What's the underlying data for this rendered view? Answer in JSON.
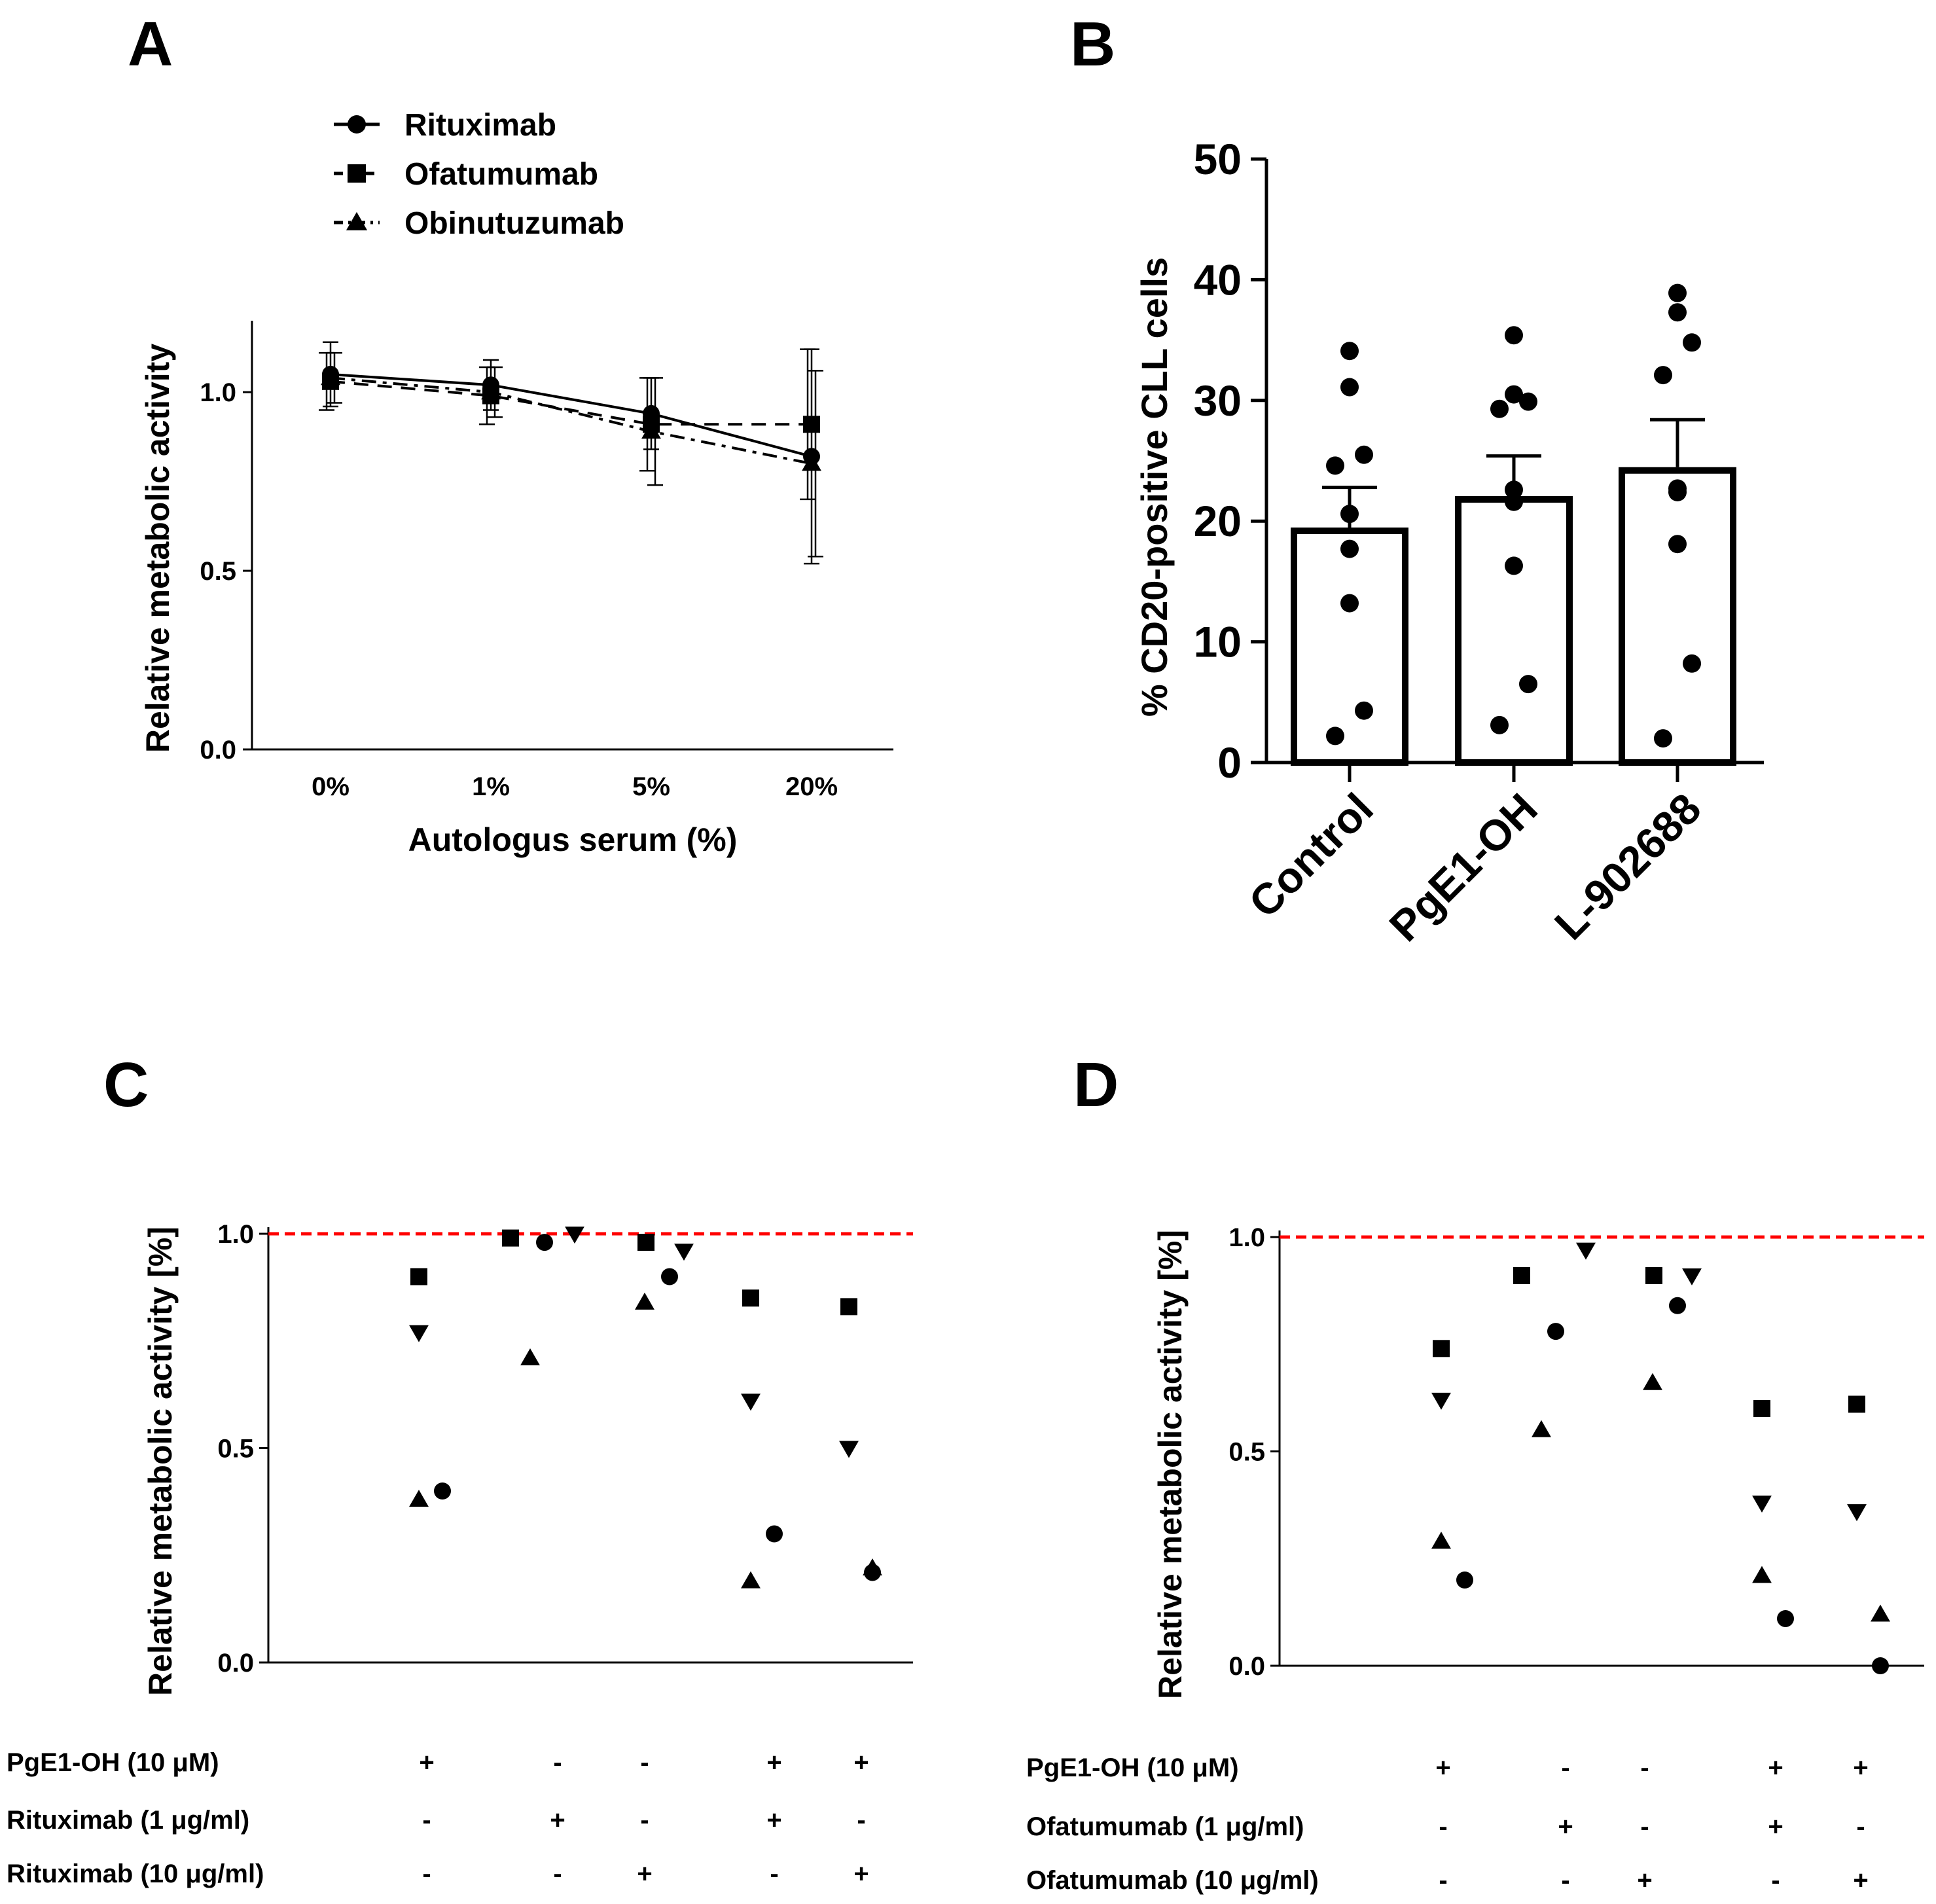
{
  "colors": {
    "ink": "#000000",
    "reference_line": "#ff0000",
    "background": "#ffffff"
  },
  "chart_data": [
    {
      "panel": "A",
      "type": "line",
      "title": "",
      "xlabel": "Autologus serum (%)",
      "ylabel": "Relative metabolic activity",
      "categories": [
        "0%",
        "1%",
        "5%",
        "20%"
      ],
      "ylim": [
        0,
        1.2
      ],
      "yticks": [
        0.0,
        0.5,
        1.0
      ],
      "ytick_labels": [
        "0.0",
        "0.5",
        "1.0"
      ],
      "legend_position": "top-left",
      "series": [
        {
          "name": "Rituximab",
          "marker": "circle",
          "line_style": "solid",
          "values": [
            1.05,
            1.02,
            0.94,
            0.82
          ],
          "errors": [
            0.09,
            0.07,
            0.1,
            0.3
          ]
        },
        {
          "name": "Ofatumumab",
          "marker": "square",
          "line_style": "dashed",
          "values": [
            1.03,
            0.99,
            0.91,
            0.91
          ],
          "errors": [
            0.08,
            0.08,
            0.13,
            0.21
          ]
        },
        {
          "name": "Obinutuzumab",
          "marker": "triangle-up",
          "line_style": "dash-dot",
          "values": [
            1.04,
            1.0,
            0.89,
            0.8
          ],
          "errors": [
            0.07,
            0.07,
            0.15,
            0.26
          ]
        }
      ]
    },
    {
      "panel": "B",
      "type": "bar",
      "title": "",
      "xlabel": "",
      "ylabel": "% CD20-positive CLL cells",
      "categories": [
        "Control",
        "PgE1-OH",
        "L-902688"
      ],
      "ylim": [
        0,
        50
      ],
      "yticks": [
        0,
        10,
        20,
        30,
        40,
        50
      ],
      "ytick_labels": [
        "0",
        "10",
        "20",
        "30",
        "40",
        "50"
      ],
      "values": [
        19.2,
        21.8,
        24.2
      ],
      "sem": [
        3.6,
        3.6,
        4.2
      ],
      "points": [
        [
          34.1,
          31.1,
          25.5,
          24.6,
          20.6,
          17.7,
          13.2,
          4.3,
          2.2
        ],
        [
          35.4,
          30.5,
          29.9,
          29.3,
          22.6,
          21.6,
          16.3,
          6.5,
          3.1
        ],
        [
          38.9,
          37.3,
          34.8,
          32.1,
          22.7,
          22.4,
          18.1,
          8.2,
          2.0
        ]
      ]
    },
    {
      "panel": "C",
      "type": "scatter",
      "title": "",
      "xlabel": "",
      "ylabel": "Relative metabolic activity [%]",
      "ylim": [
        0,
        1.0
      ],
      "yticks": [
        0.0,
        0.5,
        1.0
      ],
      "ytick_labels": [
        "0.0",
        "0.5",
        "1.0"
      ],
      "reference_line": 1.0,
      "conditions": [
        {
          "label": "PgE1-OH (10 μM)",
          "signs": [
            "+",
            "-",
            "-",
            "+",
            "+"
          ]
        },
        {
          "label": "Rituximab (1 μg/ml)",
          "signs": [
            "-",
            "+",
            "-",
            "+",
            "-"
          ]
        },
        {
          "label": "Rituximab (10 μg/ml)",
          "signs": [
            "-",
            "-",
            "+",
            "-",
            "+"
          ]
        }
      ],
      "groups": [
        {
          "square": 0.9,
          "triangle-down": 0.77,
          "triangle-up": 0.38,
          "circle": 0.4
        },
        {
          "square": 0.99,
          "triangle-down": 1.0,
          "triangle-up": 0.71,
          "circle": 0.98
        },
        {
          "square": 0.98,
          "triangle-down": 0.96,
          "triangle-up": 0.84,
          "circle": 0.9
        },
        {
          "square": 0.85,
          "triangle-down": 0.61,
          "triangle-up": 0.19,
          "circle": 0.3
        },
        {
          "square": 0.83,
          "triangle-down": 0.5,
          "triangle-up": 0.22,
          "circle": 0.21
        }
      ]
    },
    {
      "panel": "D",
      "type": "scatter",
      "title": "",
      "xlabel": "",
      "ylabel": "Relative metabolic activity [%]",
      "ylim": [
        0,
        1.0
      ],
      "yticks": [
        0.0,
        0.5,
        1.0
      ],
      "ytick_labels": [
        "0.0",
        "0.5",
        "1.0"
      ],
      "reference_line": 1.0,
      "conditions": [
        {
          "label": "PgE1-OH (10 μM)",
          "signs": [
            "+",
            "-",
            "-",
            "+",
            "+"
          ]
        },
        {
          "label": "Ofatumumab (1 μg/ml)",
          "signs": [
            "-",
            "+",
            "-",
            "+",
            "-"
          ]
        },
        {
          "label": "Ofatumumab (10 μg/ml)",
          "signs": [
            "-",
            "-",
            "+",
            "-",
            "+"
          ]
        }
      ],
      "groups": [
        {
          "square": 0.74,
          "triangle-down": 0.62,
          "triangle-up": 0.29,
          "circle": 0.2
        },
        {
          "square": 0.91,
          "triangle-down": 0.97,
          "triangle-up": 0.55,
          "circle": 0.78
        },
        {
          "square": 0.91,
          "triangle-down": 0.91,
          "triangle-up": 0.66,
          "circle": 0.84
        },
        {
          "square": 0.6,
          "triangle-down": 0.38,
          "triangle-up": 0.21,
          "circle": 0.11
        },
        {
          "square": 0.61,
          "triangle-down": 0.36,
          "triangle-up": 0.12,
          "circle": 0.0
        }
      ]
    }
  ]
}
